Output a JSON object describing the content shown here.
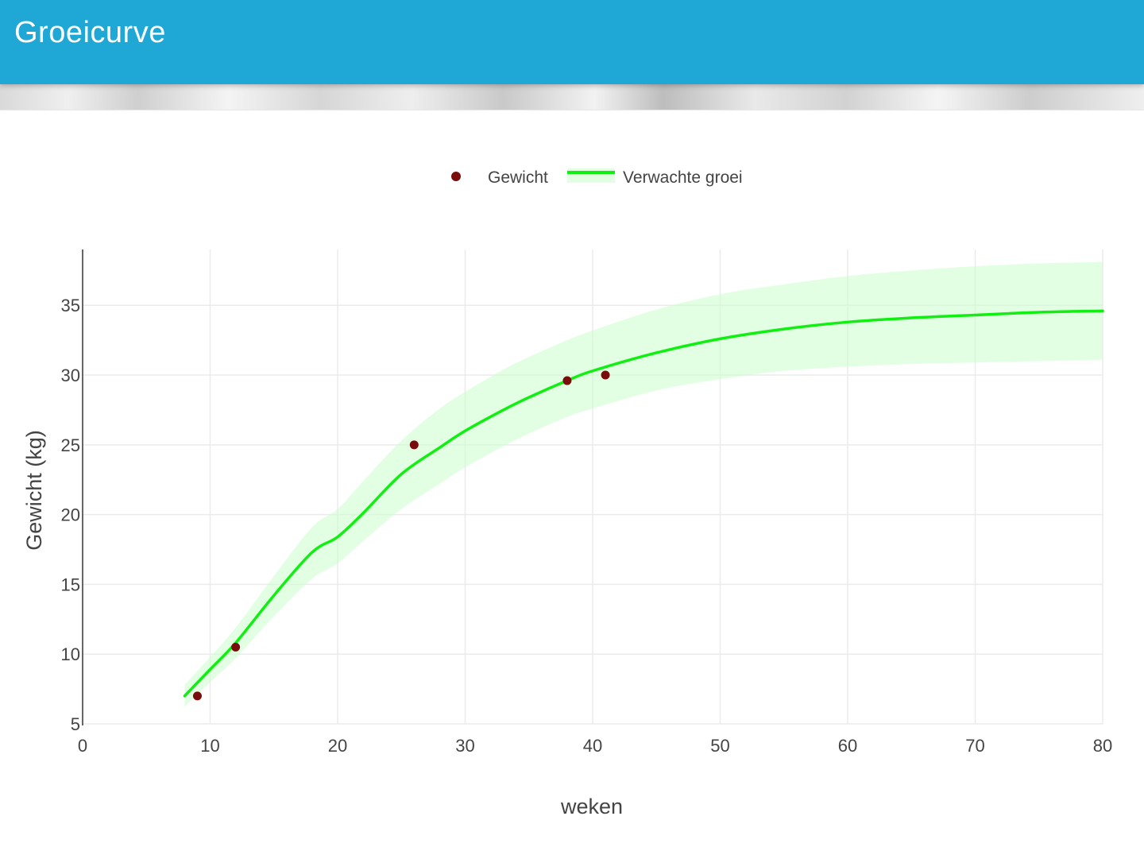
{
  "header": {
    "title": "Groeicurve"
  },
  "chart_data": {
    "type": "line",
    "xlabel": "weken",
    "ylabel": "Gewicht (kg)",
    "xlim": [
      0,
      80
    ],
    "ylim": [
      5,
      39
    ],
    "x_ticks": [
      0,
      10,
      20,
      30,
      40,
      50,
      60,
      70,
      80
    ],
    "y_ticks": [
      5,
      10,
      15,
      20,
      25,
      30,
      35
    ],
    "grid": true,
    "legend_position": "top-center",
    "series": [
      {
        "name": "Gewicht",
        "kind": "scatter",
        "color": "#7a0c0c",
        "x": [
          9,
          12,
          26,
          38,
          41
        ],
        "y": [
          7.0,
          10.5,
          25.0,
          29.6,
          30.0
        ]
      },
      {
        "name": "Verwachte groei",
        "kind": "line",
        "color": "#11ee11",
        "band_color": "#ccffcc",
        "x": [
          8,
          10,
          12,
          15,
          18,
          20,
          22,
          25,
          28,
          30,
          33,
          35,
          38,
          40,
          45,
          50,
          55,
          60,
          65,
          70,
          75,
          80
        ],
        "y": [
          7.0,
          8.9,
          10.8,
          14.2,
          17.3,
          18.4,
          20.1,
          22.9,
          24.8,
          26.0,
          27.5,
          28.4,
          29.6,
          30.3,
          31.6,
          32.6,
          33.3,
          33.8,
          34.1,
          34.3,
          34.5,
          34.6
        ],
        "lower": [
          6.2,
          8.0,
          9.7,
          12.7,
          15.4,
          16.5,
          18.1,
          20.4,
          22.2,
          23.4,
          24.9,
          25.8,
          27.0,
          27.6,
          28.9,
          29.7,
          30.3,
          30.6,
          30.8,
          30.9,
          31.0,
          31.1
        ],
        "upper": [
          7.8,
          9.8,
          11.9,
          15.6,
          19.1,
          20.4,
          22.4,
          25.3,
          27.6,
          28.8,
          30.4,
          31.3,
          32.5,
          33.2,
          34.7,
          35.8,
          36.5,
          37.1,
          37.5,
          37.8,
          38.0,
          38.1
        ]
      }
    ]
  }
}
